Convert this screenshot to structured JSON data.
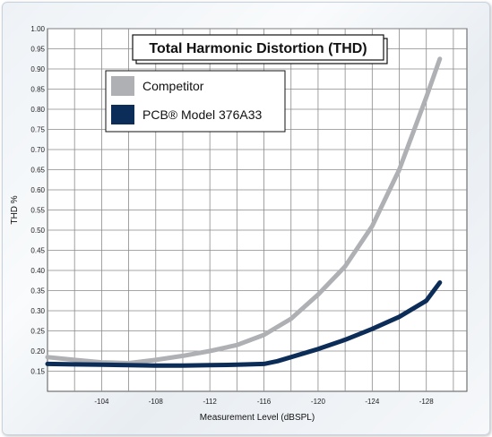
{
  "chart_data": {
    "type": "line",
    "title": "Total Harmonic Distortion (THD)",
    "xlabel": "Measurement Level (dBSPL)",
    "ylabel": "THD %",
    "xlim": [
      -100,
      -131
    ],
    "ylim": [
      0.1,
      1.0
    ],
    "x_ticks": [
      "-104",
      "-108",
      "-112",
      "-116",
      "-120",
      "-124",
      "-128"
    ],
    "y_ticks": [
      "0.15",
      "0.20",
      "0.25",
      "0.30",
      "0.35",
      "0.40",
      "0.45",
      "0.50",
      "0.55",
      "0.60",
      "0.65",
      "0.70",
      "0.75",
      "0.80",
      "0.85",
      "0.90",
      "0.95",
      "1.00"
    ],
    "grid": true,
    "legend_position": "top-left",
    "series": [
      {
        "name": "Competitor",
        "color": "#aeb0b3",
        "x": [
          -100,
          -102,
          -104,
          -106,
          -108,
          -110,
          -112,
          -114,
          -116,
          -118,
          -120,
          -122,
          -124,
          -126,
          -128,
          -129
        ],
        "y": [
          0.185,
          0.178,
          0.172,
          0.17,
          0.178,
          0.188,
          0.2,
          0.215,
          0.24,
          0.28,
          0.34,
          0.41,
          0.51,
          0.65,
          0.83,
          0.925
        ]
      },
      {
        "name": "PCB® Model 376A33",
        "color": "#0d2d59",
        "x": [
          -100,
          -102,
          -104,
          -106,
          -108,
          -110,
          -112,
          -114,
          -116,
          -117,
          -118,
          -120,
          -122,
          -124,
          -126,
          -128,
          -129
        ],
        "y": [
          0.168,
          0.167,
          0.166,
          0.165,
          0.164,
          0.164,
          0.165,
          0.166,
          0.168,
          0.175,
          0.185,
          0.205,
          0.228,
          0.255,
          0.285,
          0.325,
          0.37
        ]
      }
    ]
  }
}
